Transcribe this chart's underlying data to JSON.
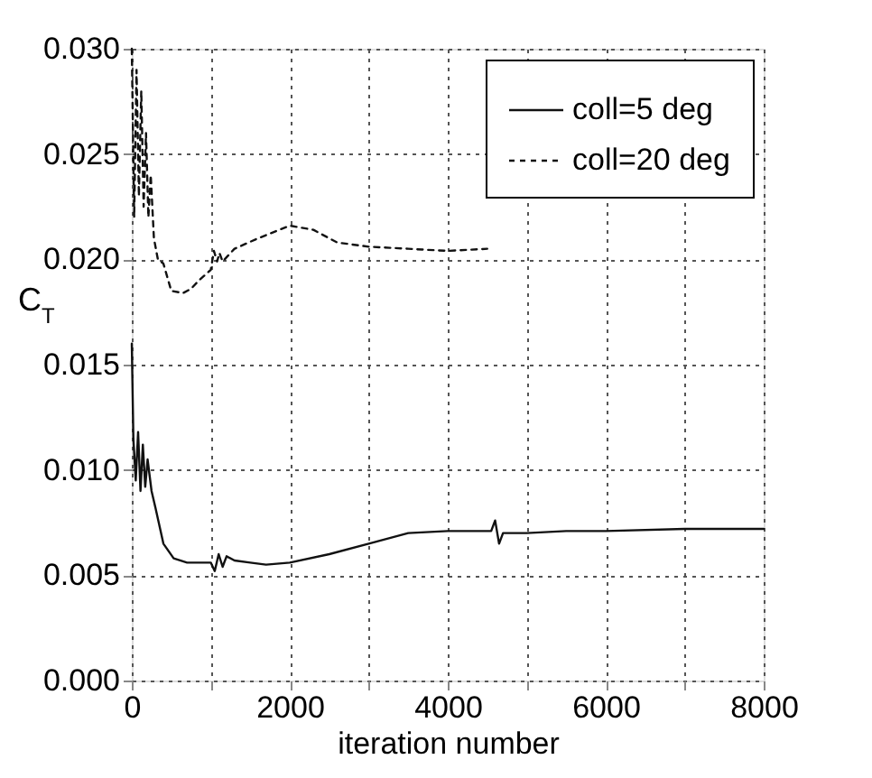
{
  "chart_data": {
    "type": "line",
    "xlabel": "iteration number",
    "ylabel": "C$_{T}$",
    "xlim": [
      0,
      8000
    ],
    "ylim": [
      0,
      0.03
    ],
    "xticks": [
      0,
      {
        "value": 1000,
        "label": null
      },
      2000,
      {
        "value": 3000,
        "label": null
      },
      4000,
      {
        "value": 5000,
        "label": null
      },
      6000,
      {
        "value": 7000,
        "label": null
      },
      8000
    ],
    "yticks": [
      {
        "value": 0,
        "label": "0.000"
      },
      {
        "value": 0.005,
        "label": "0.005"
      },
      {
        "value": 0.01,
        "label": "0.010"
      },
      {
        "value": 0.015,
        "label": "0.015"
      },
      {
        "value": 0.02,
        "label": "0.020"
      },
      {
        "value": 0.025,
        "label": "0.025"
      },
      {
        "value": 0.03,
        "label": "0.030"
      }
    ],
    "grid": true,
    "legend": "top right",
    "series": [
      {
        "name": "coll=5 deg",
        "color": "#111111",
        "line_style": "solid",
        "x": [
          0,
          20,
          50,
          80,
          110,
          140,
          170,
          200,
          250,
          300,
          400,
          530,
          700,
          1000,
          1050,
          1100,
          1150,
          1200,
          1300,
          1500,
          1700,
          2000,
          2500,
          3000,
          3500,
          4000,
          4400,
          4550,
          4600,
          4650,
          4700,
          5000,
          5500,
          6000,
          7000,
          8000
        ],
        "values": [
          0.016,
          0.0115,
          0.0095,
          0.0118,
          0.009,
          0.0112,
          0.0092,
          0.0105,
          0.009,
          0.0082,
          0.0065,
          0.0058,
          0.0056,
          0.0056,
          0.0052,
          0.006,
          0.0054,
          0.0059,
          0.0057,
          0.0056,
          0.0055,
          0.0056,
          0.006,
          0.0065,
          0.007,
          0.0071,
          0.0071,
          0.0071,
          0.0076,
          0.0065,
          0.007,
          0.007,
          0.0071,
          0.0071,
          0.0072,
          0.0072
        ]
      },
      {
        "name": "coll=20 deg",
        "color": "#111111",
        "line_style": "dashed",
        "x": [
          0,
          30,
          60,
          90,
          120,
          150,
          180,
          210,
          240,
          280,
          330,
          400,
          500,
          650,
          750,
          850,
          1000,
          1040,
          1080,
          1110,
          1150,
          1300,
          1600,
          2000,
          2300,
          2600,
          3000,
          3500,
          4000,
          4500
        ],
        "values": [
          0.03,
          0.022,
          0.029,
          0.023,
          0.028,
          0.0225,
          0.026,
          0.022,
          0.024,
          0.021,
          0.02,
          0.0198,
          0.0185,
          0.0184,
          0.0186,
          0.019,
          0.0195,
          0.0204,
          0.0199,
          0.0203,
          0.0199,
          0.0205,
          0.021,
          0.0216,
          0.0214,
          0.0208,
          0.0206,
          0.0205,
          0.0204,
          0.0205
        ]
      }
    ]
  }
}
